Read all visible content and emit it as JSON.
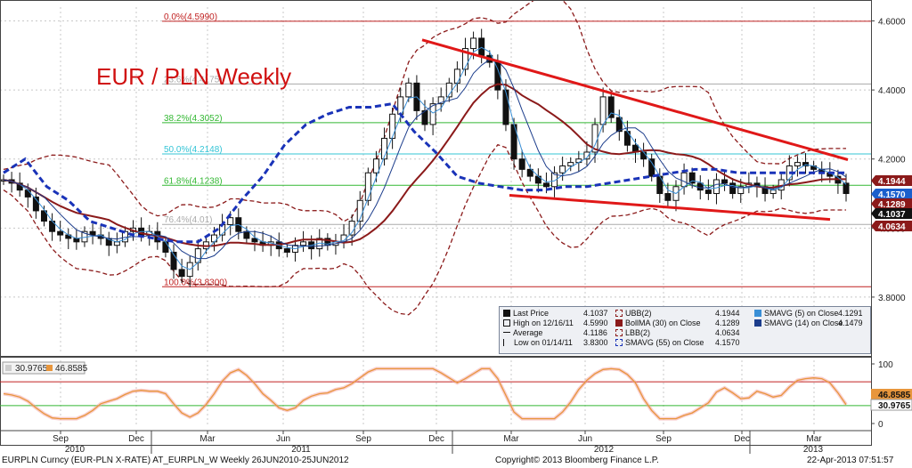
{
  "title": "EUR / PLN Weekly",
  "colors": {
    "candle": "#111111",
    "bollinger_band": "#8b1a1a",
    "bollinger_ma": "#8b1a1a",
    "sma5": "#3a8fd6",
    "sma14": "#1c3d8c",
    "sma55": "#1a33b8",
    "trendline": "#e01818",
    "fib_green": "#33b833",
    "fib_cyan": "#33c4d6",
    "fib_red": "#c02020",
    "rsi_line": "#e8963c",
    "tag_red": "#8b1a1a",
    "tag_blue": "#1a5fcc",
    "tag_black": "#111111",
    "tag_orange": "#e8963c"
  },
  "chart_data": {
    "type": "candlestick",
    "y_axis": {
      "range": [
        3.64,
        4.64
      ],
      "ticks": [
        "4.6000",
        "4.4000",
        "4.2000",
        "4.0000",
        "3.8000"
      ]
    },
    "x_axis": {
      "months": [
        "Sep",
        "Dec",
        "Mar",
        "Jun",
        "Sep",
        "Dec",
        "Mar",
        "Jun",
        "Sep",
        "Dec",
        "Mar"
      ],
      "years": [
        "2010",
        "2011",
        "2012",
        "2013"
      ]
    },
    "fibonacci": [
      {
        "label": "0.0%(4.5990)",
        "value": 4.599,
        "color": "red"
      },
      {
        "label": "23.6%(4.4175)",
        "value": 4.4175,
        "color": "gray"
      },
      {
        "label": "38.2%(4.3052)",
        "value": 4.3052,
        "color": "green"
      },
      {
        "label": "50.0%(4.2148)",
        "value": 4.2148,
        "color": "cyan"
      },
      {
        "label": "61.8%(4.1238)",
        "value": 4.1238,
        "color": "green"
      },
      {
        "label": "76.4%(4.01)",
        "value": 4.0106,
        "color": "gray"
      },
      {
        "label": "100.0%(3.8300)",
        "value": 3.83,
        "color": "red"
      }
    ],
    "price_tags": [
      {
        "value": "4.1944",
        "color": "tag_red"
      },
      {
        "value": "4.1570",
        "color": "tag_blue"
      },
      {
        "value": "4.1289",
        "color": "tag_red"
      },
      {
        "value": "4.1037",
        "color": "tag_black"
      },
      {
        "value": "4.0634",
        "color": "tag_red"
      }
    ],
    "rsi": {
      "labels": [
        "30.9765",
        "46.8585"
      ],
      "axis_ticks": [
        "100",
        "50",
        "0"
      ],
      "tags": [
        "46.8585",
        "30.9765"
      ]
    },
    "series": [
      {
        "name": "SMAVG (55) on Close",
        "values": [
          4.16,
          4.2,
          4.12,
          4.08,
          4.02,
          4.0,
          3.98,
          3.97,
          3.96,
          3.96,
          4.0,
          4.08,
          4.15,
          4.24,
          4.3,
          4.33,
          4.35,
          4.35,
          4.36,
          4.28,
          4.22,
          4.15,
          4.13,
          4.12,
          4.11,
          4.11,
          4.12,
          4.12,
          4.13,
          4.14,
          4.15,
          4.16,
          4.17,
          4.17,
          4.16,
          4.16,
          4.16,
          4.16,
          4.16,
          4.16
        ]
      }
    ]
  },
  "legend": {
    "left": [
      {
        "label": "Last Price",
        "value": "4.1037"
      },
      {
        "label": "High on 12/16/11",
        "value": "4.5990"
      },
      {
        "label": "Average",
        "value": "4.1186"
      },
      {
        "label": "Low on 01/14/11",
        "value": "3.8300"
      }
    ],
    "mid": [
      {
        "label": "UBB(2)",
        "value": "4.1944"
      },
      {
        "label": "BollMA (30) on Close",
        "value": "4.1289"
      },
      {
        "label": "LBB(2)",
        "value": "4.0634"
      },
      {
        "label": "SMAVG (55) on Close",
        "value": "4.1570"
      }
    ],
    "right": [
      {
        "label": "SMAVG (5) on Close",
        "value": "4.1291"
      },
      {
        "label": "SMAVG (14) on Close",
        "value": "4.1479"
      }
    ]
  },
  "footer": {
    "left": "EURPLN Curncy (EUR-PLN X-RATE) AT_EURPLN_W  Weekly 26JUN2010-25JUN2012",
    "center": "Copyright© 2013 Bloomberg Finance L.P.",
    "right": "22-Apr-2013 07:51:57"
  }
}
